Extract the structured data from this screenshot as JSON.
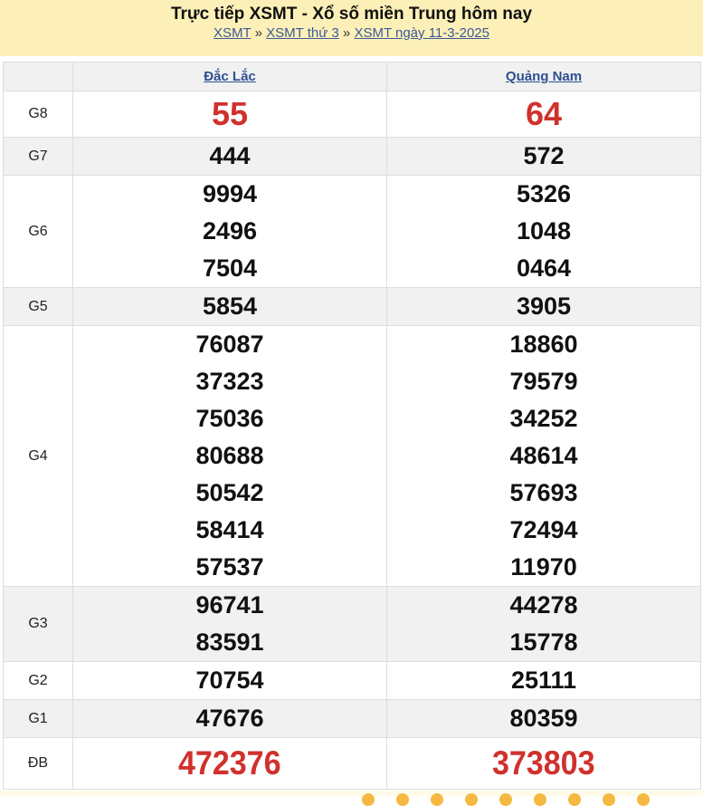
{
  "header": {
    "title": "Trực tiếp XSMT - Xổ số miền Trung hôm nay",
    "breadcrumbs": [
      "XSMT",
      "XSMT thứ 3",
      "XSMT ngày 11-3-2025"
    ],
    "separator": "»"
  },
  "provinces": [
    "Đắc Lắc",
    "Quảng Nam"
  ],
  "prizes": [
    {
      "label": "G8",
      "values": [
        [
          "55"
        ],
        [
          "64"
        ]
      ]
    },
    {
      "label": "G7",
      "values": [
        [
          "444"
        ],
        [
          "572"
        ]
      ]
    },
    {
      "label": "G6",
      "values": [
        [
          "9994",
          "2496",
          "7504"
        ],
        [
          "5326",
          "1048",
          "0464"
        ]
      ]
    },
    {
      "label": "G5",
      "values": [
        [
          "5854"
        ],
        [
          "3905"
        ]
      ]
    },
    {
      "label": "G4",
      "values": [
        [
          "76087",
          "37323",
          "75036",
          "80688",
          "50542",
          "58414",
          "57537"
        ],
        [
          "18860",
          "79579",
          "34252",
          "48614",
          "57693",
          "72494",
          "11970"
        ]
      ]
    },
    {
      "label": "G3",
      "values": [
        [
          "96741",
          "83591"
        ],
        [
          "44278",
          "15778"
        ]
      ]
    },
    {
      "label": "G2",
      "values": [
        [
          "70754"
        ],
        [
          "25111"
        ]
      ]
    },
    {
      "label": "G1",
      "values": [
        [
          "47676"
        ],
        [
          "80359"
        ]
      ]
    },
    {
      "label": "ĐB",
      "values": [
        [
          "472376"
        ],
        [
          "373803"
        ]
      ]
    }
  ],
  "colors": {
    "accent": "#d0312d",
    "header_bg": "#fcf0b8",
    "link": "#3b5a98"
  }
}
